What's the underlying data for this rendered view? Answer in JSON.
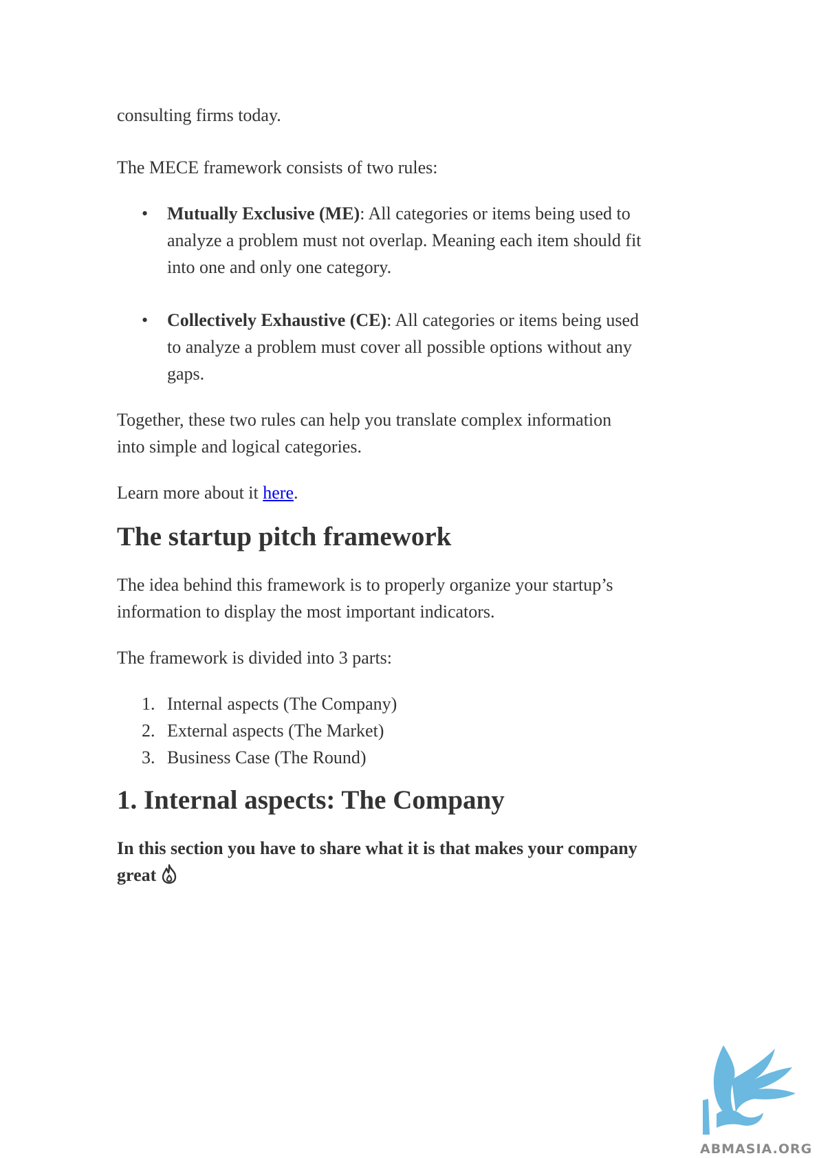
{
  "paragraphs": {
    "first": "consulting firms today.",
    "mece_intro": "The MECE framework consists of two rules:",
    "together_line1": "Together, these two rules can help you translate complex information",
    "together_line2": "into simple and logical categories.",
    "learn_prefix": "Learn more about it ",
    "learn_link": "here",
    "learn_suffix": "."
  },
  "rules": [
    {
      "bullet": "•",
      "term": "Mutually Exclusive (ME)",
      "line1": ": All categories or items being used to",
      "line2": "analyze a problem must not overlap. Meaning each item should fit",
      "line3": "into one and only one category."
    },
    {
      "bullet": "•",
      "term": "Collectively Exhaustive (CE)",
      "line1": ": All categories or items being used",
      "line2": "to analyze a problem must cover all possible options without any",
      "line3": "gaps."
    }
  ],
  "startup": {
    "heading": "The startup pitch framework",
    "idea_line1": "The idea behind this framework is to properly organize your startup’s",
    "idea_line2": "information to display the most important indicators.",
    "divided": "The framework is divided into 3 parts:",
    "parts": [
      {
        "num": "1.",
        "label": "Internal aspects (The Company)"
      },
      {
        "num": "2.",
        "label": "External aspects (The Market)"
      },
      {
        "num": "3.",
        "label": "Business Case (The Round)"
      }
    ]
  },
  "internal": {
    "heading": "1. Internal aspects: The Company",
    "bold_line1": "In this section you have to share what it is that makes your company",
    "bold_line2": "great"
  },
  "emoji_icon": "fire-icon",
  "watermark": {
    "text": "ABMASIA.ORG",
    "color": "#6bb8e0"
  }
}
